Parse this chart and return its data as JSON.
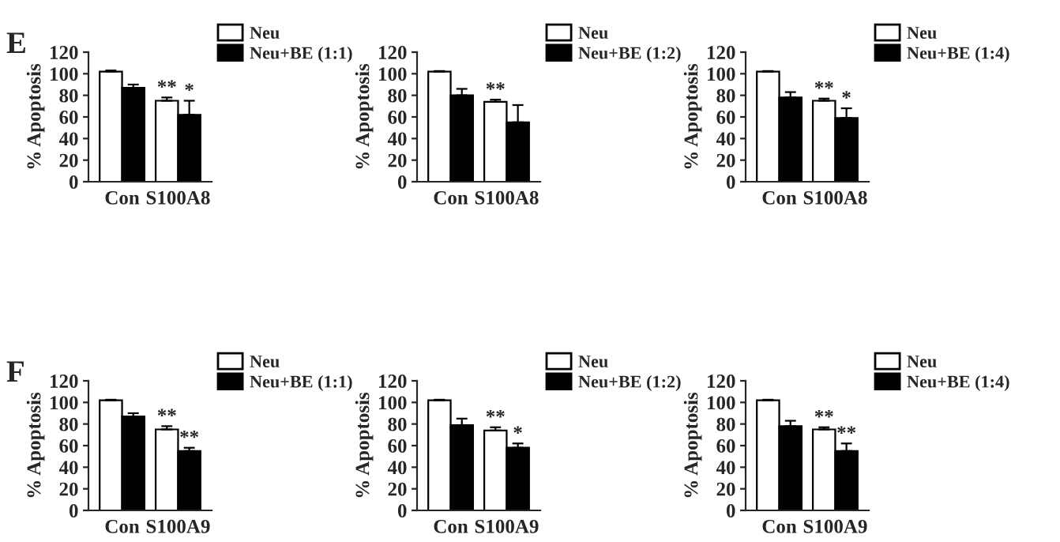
{
  "chart_data": [
    {
      "type": "bar",
      "ylabel": "% Apoptosis",
      "categories": [
        "Con",
        "S100A8"
      ],
      "ylim": [
        0,
        120
      ],
      "yticks": [
        0,
        20,
        40,
        60,
        80,
        100,
        120
      ],
      "legend": "top right",
      "grid": false,
      "series": [
        {
          "name": "Neu",
          "color": "#ffffff",
          "values": [
            102,
            75
          ],
          "errors": [
            1,
            3
          ]
        },
        {
          "name": "Neu+BE (1:1)",
          "color": "#000000",
          "values": [
            87,
            62
          ],
          "errors": [
            3,
            13
          ]
        }
      ],
      "annotations": [
        "E",
        {
          "text": "**",
          "x": "S100A8",
          "y": 78
        },
        {
          "text": "*",
          "x": "S100A8",
          "y": 75
        }
      ]
    },
    {
      "type": "bar",
      "ylabel": "% Apoptosis",
      "categories": [
        "Con",
        "S100A8"
      ],
      "ylim": [
        0,
        120
      ],
      "yticks": [
        0,
        20,
        40,
        60,
        80,
        100,
        120
      ],
      "legend": "top right",
      "grid": false,
      "series": [
        {
          "name": "Neu",
          "color": "#ffffff",
          "values": [
            102,
            74
          ],
          "errors": [
            0.5,
            2
          ]
        },
        {
          "name": "Neu+BE (1:2)",
          "color": "#000000",
          "values": [
            80,
            55
          ],
          "errors": [
            6,
            16
          ]
        }
      ],
      "annotations": [
        {
          "text": "**",
          "x": "S100A8",
          "y": 76
        }
      ]
    },
    {
      "type": "bar",
      "ylabel": "% Apoptosis",
      "categories": [
        "Con",
        "S100A8"
      ],
      "ylim": [
        0,
        120
      ],
      "yticks": [
        0,
        20,
        40,
        60,
        80,
        100,
        120
      ],
      "legend": "top right",
      "grid": false,
      "series": [
        {
          "name": "Neu",
          "color": "#ffffff",
          "values": [
            102,
            75
          ],
          "errors": [
            0.5,
            2
          ]
        },
        {
          "name": "Neu+BE (1:4)",
          "color": "#000000",
          "values": [
            78,
            59
          ],
          "errors": [
            5,
            9
          ]
        }
      ],
      "annotations": [
        {
          "text": "**",
          "x": "S100A8",
          "y": 77
        },
        {
          "text": "*",
          "x": "S100A8",
          "y": 68
        }
      ]
    },
    {
      "type": "bar",
      "ylabel": "% Apoptosis",
      "categories": [
        "Con",
        "S100A9"
      ],
      "ylim": [
        0,
        120
      ],
      "yticks": [
        0,
        20,
        40,
        60,
        80,
        100,
        120
      ],
      "legend": "top right",
      "grid": false,
      "series": [
        {
          "name": "Neu",
          "color": "#ffffff",
          "values": [
            102,
            75
          ],
          "errors": [
            0.5,
            3
          ]
        },
        {
          "name": "Neu+BE (1:1)",
          "color": "#000000",
          "values": [
            87,
            55
          ],
          "errors": [
            3,
            3
          ]
        }
      ],
      "annotations": [
        "F",
        {
          "text": "**",
          "x": "S100A9",
          "y": 78
        },
        {
          "text": "**",
          "x": "S100A9",
          "y": 58
        }
      ]
    },
    {
      "type": "bar",
      "ylabel": "% Apoptosis",
      "categories": [
        "Con",
        "S100A9"
      ],
      "ylim": [
        0,
        120
      ],
      "yticks": [
        0,
        20,
        40,
        60,
        80,
        100,
        120
      ],
      "legend": "top right",
      "grid": false,
      "series": [
        {
          "name": "Neu",
          "color": "#ffffff",
          "values": [
            102,
            74
          ],
          "errors": [
            0.5,
            3
          ]
        },
        {
          "name": "Neu+BE (1:2)",
          "color": "#000000",
          "values": [
            79,
            58
          ],
          "errors": [
            6,
            4
          ]
        }
      ],
      "annotations": [
        {
          "text": "**",
          "x": "S100A9",
          "y": 77
        },
        {
          "text": "*",
          "x": "S100A9",
          "y": 62
        }
      ]
    },
    {
      "type": "bar",
      "ylabel": "% Apoptosis",
      "categories": [
        "Con",
        "S100A9"
      ],
      "ylim": [
        0,
        120
      ],
      "yticks": [
        0,
        20,
        40,
        60,
        80,
        100,
        120
      ],
      "legend": "top right",
      "grid": false,
      "series": [
        {
          "name": "Neu",
          "color": "#ffffff",
          "values": [
            102,
            75
          ],
          "errors": [
            0.5,
            2
          ]
        },
        {
          "name": "Neu+BE (1:4)",
          "color": "#000000",
          "values": [
            78,
            55
          ],
          "errors": [
            5,
            7
          ]
        }
      ],
      "annotations": [
        {
          "text": "**",
          "x": "S100A9",
          "y": 77
        },
        {
          "text": "**",
          "x": "S100A9",
          "y": 62
        }
      ]
    }
  ]
}
